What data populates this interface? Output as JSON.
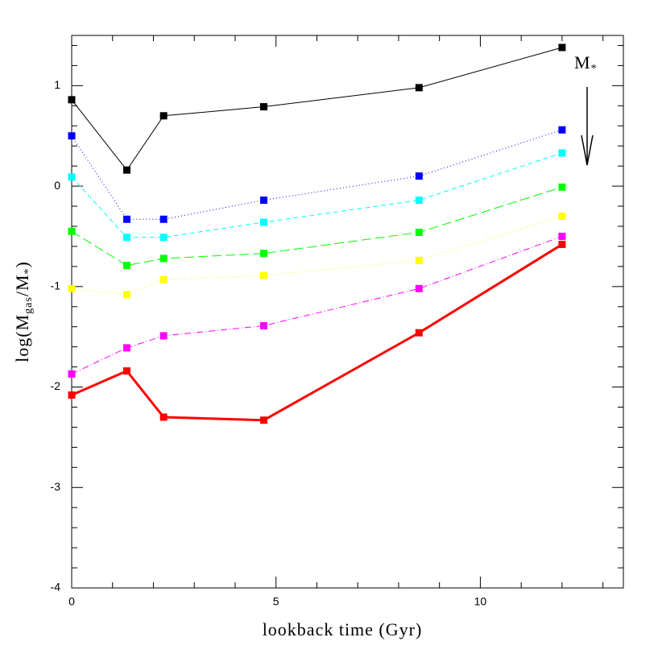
{
  "chart_data": {
    "type": "line",
    "xlabel": "lookback time (Gyr)",
    "ylabel_parts": [
      "log(M",
      "gas",
      "/M",
      "*",
      ")"
    ],
    "annotation_parts": [
      "M",
      "*"
    ],
    "x": [
      0,
      1.35,
      2.25,
      4.7,
      8.5,
      12
    ],
    "series": [
      {
        "color": "#000000",
        "linestyle": "solid",
        "linewidth": 1,
        "values": [
          0.86,
          0.16,
          0.7,
          0.79,
          0.98,
          1.38
        ]
      },
      {
        "color": "#0000ff",
        "linestyle": "dotted",
        "linewidth": 1,
        "values": [
          0.5,
          -0.33,
          -0.33,
          -0.14,
          0.1,
          0.56
        ]
      },
      {
        "color": "#00ffff",
        "linestyle": "dashed",
        "linewidth": 1,
        "values": [
          0.09,
          -0.51,
          -0.51,
          -0.36,
          -0.14,
          0.33
        ]
      },
      {
        "color": "#00ff00",
        "linestyle": "longdash",
        "linewidth": 1,
        "values": [
          -0.45,
          -0.79,
          -0.72,
          -0.67,
          -0.46,
          -0.01
        ]
      },
      {
        "color": "#ffff00",
        "linestyle": "dotted",
        "linewidth": 1,
        "values": [
          -1.02,
          -1.08,
          -0.93,
          -0.89,
          -0.74,
          -0.3
        ]
      },
      {
        "color": "#ff00ff",
        "linestyle": "dashdot",
        "linewidth": 1,
        "values": [
          -1.87,
          -1.61,
          -1.49,
          -1.39,
          -1.02,
          -0.5
        ]
      },
      {
        "color": "#ff0000",
        "linestyle": "solid",
        "linewidth": 3,
        "values": [
          -2.08,
          -1.84,
          -2.3,
          -2.33,
          -1.46,
          -0.58
        ]
      }
    ],
    "xlim": [
      0,
      13.5
    ],
    "ylim": [
      -4,
      1.5
    ],
    "xticks": [
      0,
      5,
      10
    ],
    "yticks": [
      -4,
      -3,
      -2,
      -1,
      0,
      1
    ],
    "xminorticks": [
      1,
      2,
      3,
      4,
      6,
      7,
      8,
      9,
      11,
      12,
      13
    ],
    "yminorticks": [
      -3.8,
      -3.6,
      -3.4,
      -3.2,
      -2.8,
      -2.6,
      -2.4,
      -2.2,
      -1.8,
      -1.6,
      -1.4,
      -1.2,
      -0.8,
      -0.6,
      -0.4,
      -0.2,
      0.2,
      0.4,
      0.6,
      0.8,
      1.2,
      1.4
    ]
  }
}
